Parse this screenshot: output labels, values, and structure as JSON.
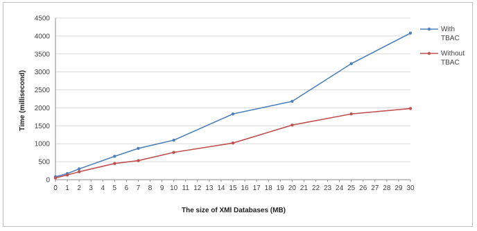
{
  "chart_data": {
    "type": "line",
    "title": "",
    "xlabel": "The size of XMl Databases (MB)",
    "ylabel": "Time (millisecond)",
    "categories": [
      "0",
      "1",
      "2",
      "3",
      "4",
      "5",
      "6",
      "7",
      "8",
      "9",
      "10",
      "11",
      "12",
      "13",
      "14",
      "15",
      "16",
      "17",
      "18",
      "19",
      "20",
      "21",
      "22",
      "23",
      "24",
      "25",
      "26",
      "27",
      "28",
      "29",
      "30"
    ],
    "y_ticks": [
      0,
      500,
      1000,
      1500,
      2000,
      2500,
      3000,
      3500,
      4000,
      4500
    ],
    "ylim": [
      0,
      4500
    ],
    "grid": "horizontal",
    "legend_position": "right",
    "series": [
      {
        "name_lines": [
          "With",
          "TBAC"
        ],
        "color": "#4f81bd",
        "points": [
          [
            0,
            80
          ],
          [
            1,
            170
          ],
          [
            2,
            300
          ],
          [
            5,
            650
          ],
          [
            7,
            870
          ],
          [
            10,
            1100
          ],
          [
            15,
            1830
          ],
          [
            20,
            2180
          ],
          [
            25,
            3230
          ],
          [
            30,
            4080
          ]
        ]
      },
      {
        "name_lines": [
          "Without",
          "TBAC"
        ],
        "color": "#c0504d",
        "points": [
          [
            0,
            50
          ],
          [
            1,
            130
          ],
          [
            2,
            220
          ],
          [
            5,
            450
          ],
          [
            7,
            530
          ],
          [
            10,
            760
          ],
          [
            15,
            1020
          ],
          [
            20,
            1520
          ],
          [
            25,
            1830
          ],
          [
            30,
            1980
          ]
        ]
      }
    ]
  }
}
